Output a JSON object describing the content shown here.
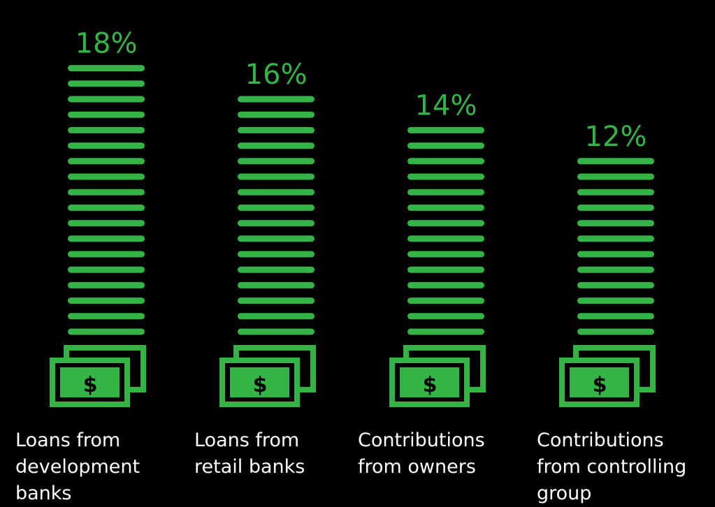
{
  "colors": {
    "background": "#000000",
    "accent": "#34b347",
    "label_text": "#ffffff",
    "note_glyph": "#000000"
  },
  "icons": [
    "money-bills-icon",
    "dollar-sign-icon",
    "coin-stack-line"
  ],
  "chart_data": {
    "type": "bar",
    "title": "",
    "xlabel": "",
    "ylabel": "",
    "ylim": [
      0,
      18
    ],
    "grid": false,
    "legend": "none",
    "categories": [
      "Loans from development banks",
      "Loans from retail banks",
      "Contributions from owners",
      "Contributions from controlling group"
    ],
    "values": [
      18,
      16,
      14,
      12
    ],
    "value_labels": [
      "18%",
      "16%",
      "14%",
      "12%"
    ],
    "note_symbol": "$"
  }
}
